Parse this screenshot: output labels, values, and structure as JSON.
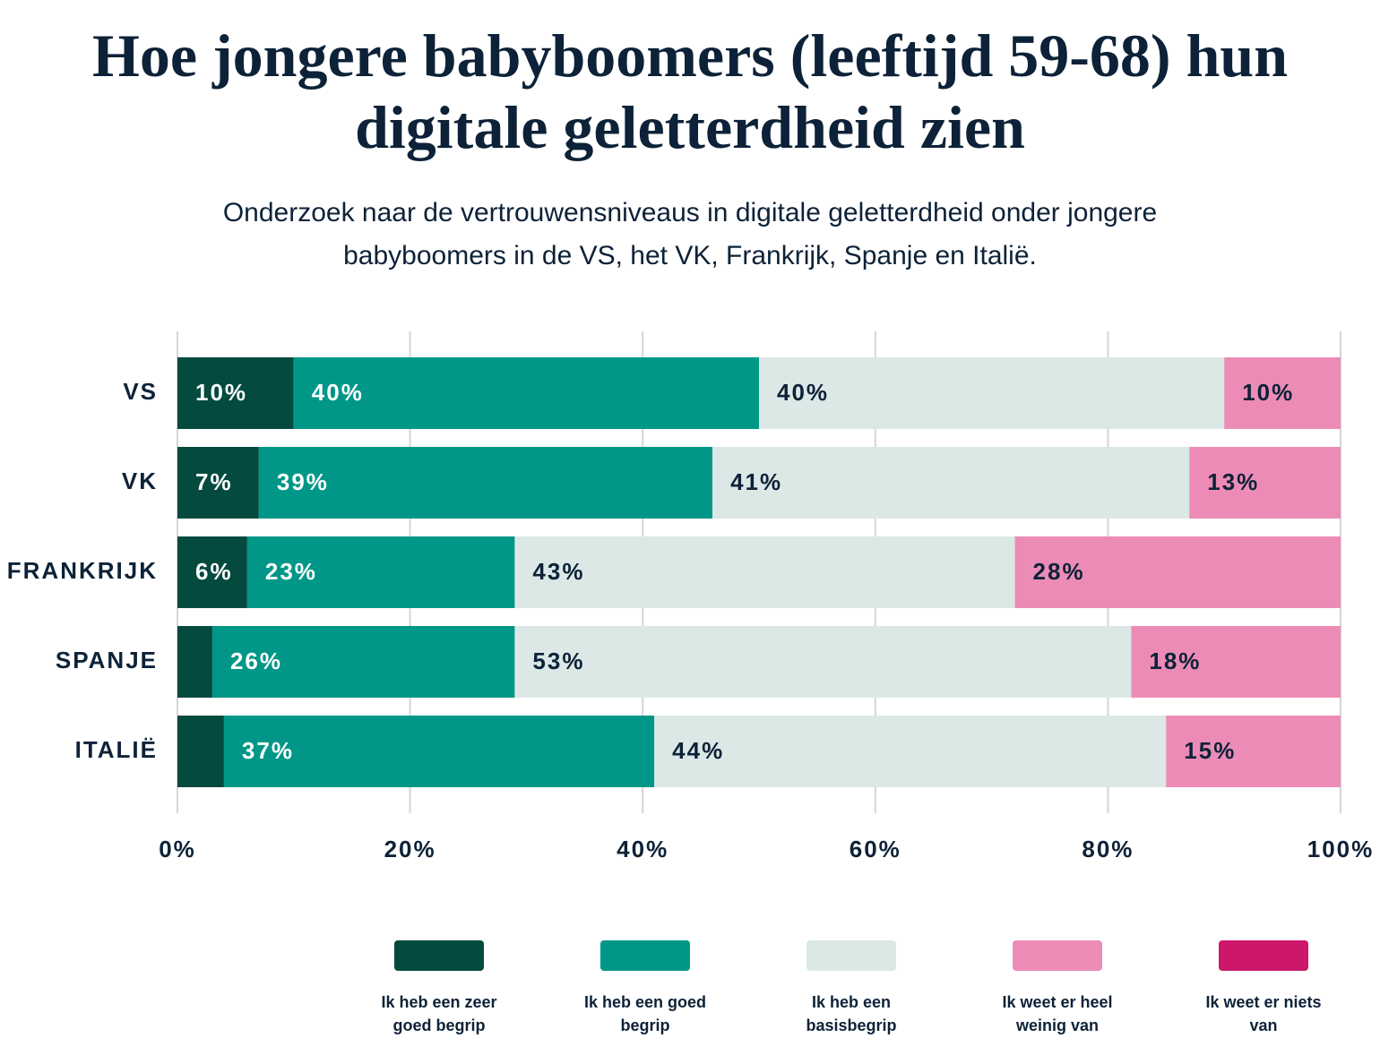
{
  "chart_data": {
    "type": "stacked_bar_horizontal",
    "title": "Hoe jongere babyboomers (leeftijd 59-68) hun digitale geletterdheid zien",
    "subtitle": "Onderzoek naar de vertrouwensniveaus in digitale geletterdheid onder jongere babyboomers in de VS, het VK, Frankrijk, Spanje en Italië.",
    "categories": [
      "VS",
      "VK",
      "FRANKRIJK",
      "SPANJE",
      "ITALIË"
    ],
    "series": [
      {
        "name": "Ik heb een zeer goed begrip",
        "color": "#054a3f",
        "values": [
          10,
          7,
          6,
          3,
          4
        ],
        "value_labels": [
          "10%",
          "7%",
          "6%",
          null,
          null
        ]
      },
      {
        "name": "Ik heb een goed begrip",
        "color": "#009788",
        "values": [
          40,
          39,
          23,
          26,
          37
        ],
        "value_labels": [
          "40%",
          "39%",
          "23%",
          "26%",
          "37%"
        ]
      },
      {
        "name": "Ik heb een basisbegrip",
        "color": "#dbe8e6",
        "values": [
          40,
          41,
          43,
          53,
          44
        ],
        "value_labels": [
          "40%",
          "41%",
          "43%",
          "53%",
          "44%"
        ]
      },
      {
        "name": "Ik weet er heel weinig van",
        "color": "#ec8cb6",
        "values": [
          10,
          13,
          28,
          18,
          15
        ],
        "value_labels": [
          "10%",
          "13%",
          "28%",
          "18%",
          "15%"
        ]
      },
      {
        "name": "Ik weet er niets van",
        "color": "#cc176a",
        "values": [
          0,
          0,
          0,
          0,
          0
        ]
      }
    ],
    "xlim": [
      0,
      100
    ],
    "xticks": [
      {
        "value": 0,
        "label": "0%"
      },
      {
        "value": 20,
        "label": "20%"
      },
      {
        "value": 40,
        "label": "40%"
      },
      {
        "value": 60,
        "label": "60%"
      },
      {
        "value": 80,
        "label": "80%"
      },
      {
        "value": 100,
        "label": "100%"
      }
    ],
    "grid": true
  }
}
